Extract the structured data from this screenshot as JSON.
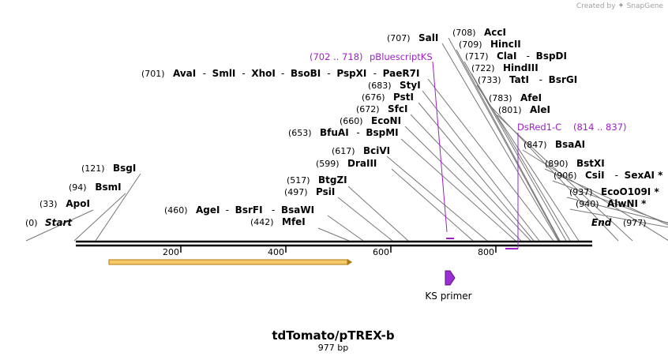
{
  "credit": {
    "text": "Created by",
    "brand": "SnapGene"
  },
  "map": {
    "title": "tdTomato/pTREX-b",
    "length_label": "977 bp",
    "start_label": "Start",
    "end_label": "End",
    "start_pos": "(0)",
    "end_pos": "(977)",
    "ticks": [
      "200",
      "400",
      "600",
      "800"
    ],
    "sites": [
      {
        "pos": "(33)",
        "names": [
          "ApoI"
        ]
      },
      {
        "pos": "(94)",
        "names": [
          "BsmI"
        ]
      },
      {
        "pos": "(121)",
        "names": [
          "BsgI"
        ]
      },
      {
        "pos": "(442)",
        "names": [
          "MfeI"
        ]
      },
      {
        "pos": "(460)",
        "names": [
          "AgeI",
          "BsrFI",
          "BsaWI"
        ]
      },
      {
        "pos": "(497)",
        "names": [
          "PsiI"
        ]
      },
      {
        "pos": "(517)",
        "names": [
          "BtgZI"
        ]
      },
      {
        "pos": "(599)",
        "names": [
          "DraIII"
        ]
      },
      {
        "pos": "(617)",
        "names": [
          "BciVI"
        ]
      },
      {
        "pos": "(653)",
        "names": [
          "BfuAI",
          "BspMI"
        ]
      },
      {
        "pos": "(660)",
        "names": [
          "EcoNI"
        ]
      },
      {
        "pos": "(672)",
        "names": [
          "SfcI"
        ]
      },
      {
        "pos": "(676)",
        "names": [
          "PstI"
        ]
      },
      {
        "pos": "(683)",
        "names": [
          "StyI"
        ]
      },
      {
        "pos": "(701)",
        "names": [
          "AvaI",
          "SmlI",
          "XhoI",
          "BsoBI",
          "PspXI",
          "PaeR7I"
        ]
      },
      {
        "pos": "(707)",
        "names": [
          "SalI"
        ]
      },
      {
        "pos": "(708)",
        "names": [
          "AccI"
        ]
      },
      {
        "pos": "(709)",
        "names": [
          "HincII"
        ]
      },
      {
        "pos": "(717)",
        "names": [
          "ClaI",
          "BspDI"
        ]
      },
      {
        "pos": "(722)",
        "names": [
          "HindIII"
        ]
      },
      {
        "pos": "(733)",
        "names": [
          "TatI",
          "BsrGI"
        ]
      },
      {
        "pos": "(783)",
        "names": [
          "AfeI"
        ]
      },
      {
        "pos": "(801)",
        "names": [
          "AleI"
        ]
      },
      {
        "pos": "(847)",
        "names": [
          "BsaAI"
        ]
      },
      {
        "pos": "(890)",
        "names": [
          "BstXI"
        ]
      },
      {
        "pos": "(906)",
        "names": [
          "CsiI",
          "SexAI *"
        ]
      },
      {
        "pos": "(937)",
        "names": [
          "EcoO109I *"
        ]
      },
      {
        "pos": "(940)",
        "names": [
          "AlwNI *"
        ]
      }
    ],
    "features": [
      {
        "name": "pBluescriptKS",
        "range": "(702 .. 718)"
      },
      {
        "name": "DsRed1-C",
        "range": "(814 .. 837)"
      }
    ],
    "primer": {
      "name": "KS primer"
    },
    "colors": {
      "feature": "#a020c8",
      "orf_fill": "#f5c86a",
      "orf_stroke": "#b07a10",
      "primer": "#9b2fd6",
      "backbone": "#000000"
    }
  }
}
